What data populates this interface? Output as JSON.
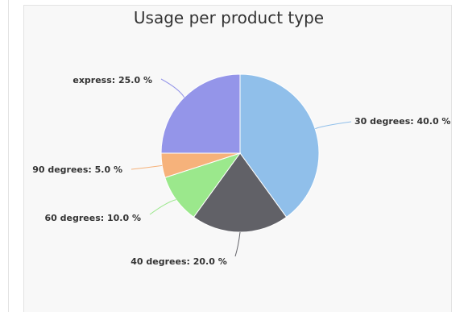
{
  "chart_data": {
    "type": "pie",
    "title": "Usage per product type",
    "slices": [
      {
        "label": "30 degrees",
        "value": 40.0,
        "color": "#90bfea"
      },
      {
        "label": "40 degrees",
        "value": 20.0,
        "color": "#616167"
      },
      {
        "label": "60 degrees",
        "value": 10.0,
        "color": "#9be88c"
      },
      {
        "label": "90 degrees",
        "value": 5.0,
        "color": "#f6b27b"
      },
      {
        "label": "express",
        "value": 25.0,
        "color": "#9495e9"
      }
    ],
    "data_label_format": "{label}: {value} %",
    "legend": "none"
  }
}
